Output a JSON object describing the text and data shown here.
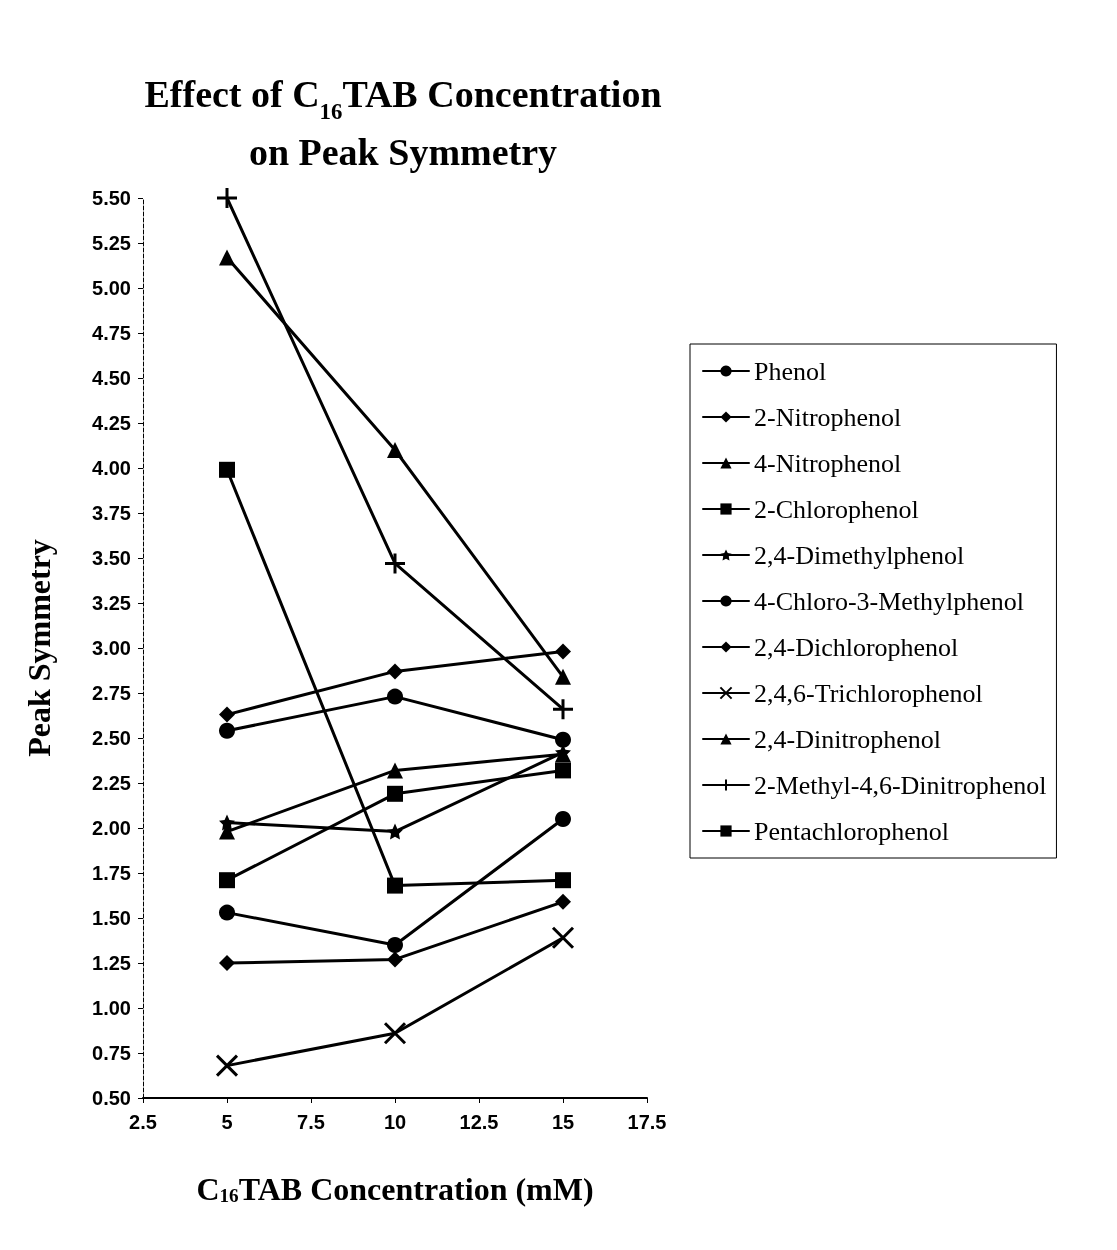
{
  "chart_data": {
    "type": "line",
    "title": "Effect of C$_{16}$TAB Concentration\non Peak Symmetry",
    "xlabel": "C$_{16}$TAB Concentration (mM)",
    "ylabel": "Peak Symmetry",
    "x": [
      5,
      10,
      15
    ],
    "xlim": [
      2.5,
      17.5
    ],
    "xticks": [
      2.5,
      5,
      7.5,
      10,
      12.5,
      15,
      17.5
    ],
    "ylim": [
      0.5,
      5.5
    ],
    "yticks": [
      {
        "value": 0.5,
        "label": "0.50"
      },
      {
        "value": 0.75,
        "label": "0.75"
      },
      {
        "value": 1,
        "label": "1.00"
      },
      {
        "value": 1.25,
        "label": "1.25"
      },
      {
        "value": 1.5,
        "label": "1.50"
      },
      {
        "value": 1.75,
        "label": "1.75"
      },
      {
        "value": 2,
        "label": "2.00"
      },
      {
        "value": 2.25,
        "label": "2.25"
      },
      {
        "value": 2.5,
        "label": "2.50"
      },
      {
        "value": 2.75,
        "label": "2.75"
      },
      {
        "value": 3,
        "label": "3.00"
      },
      {
        "value": 3.25,
        "label": "3.25"
      },
      {
        "value": 3.5,
        "label": "3.50"
      },
      {
        "value": 3.75,
        "label": "3.75"
      },
      {
        "value": 4,
        "label": "4.00"
      },
      {
        "value": 4.25,
        "label": "4.25"
      },
      {
        "value": 4.5,
        "label": "4.50"
      },
      {
        "value": 4.75,
        "label": "4.75"
      },
      {
        "value": 5,
        "label": "5.00"
      },
      {
        "value": 5.25,
        "label": "5.25"
      },
      {
        "value": 5.5,
        "label": "5.50"
      }
    ],
    "grid": false,
    "legend": "right",
    "line_style": "solid",
    "series": [
      {
        "name": "Phenol",
        "color": "#000000",
        "marker": "circle",
        "values": [
          1.53,
          1.35,
          2.05
        ]
      },
      {
        "name": "2-Nitrophenol",
        "color": "#000000",
        "marker": "diamond",
        "values": [
          1.25,
          1.27,
          1.59
        ]
      },
      {
        "name": "4-Nitrophenol",
        "color": "#000000",
        "marker": "triangle",
        "values": [
          1.98,
          2.32,
          2.41
        ]
      },
      {
        "name": "2-Chlorophenol",
        "color": "#000000",
        "marker": "square",
        "values": [
          1.71,
          2.19,
          2.32
        ]
      },
      {
        "name": "2,4-Dimethylphenol",
        "color": "#000000",
        "marker": "star",
        "values": [
          2.03,
          1.98,
          2.42
        ]
      },
      {
        "name": "4-Chloro-3-Methylphenol",
        "color": "#000000",
        "marker": "circle",
        "values": [
          2.54,
          2.73,
          2.49
        ]
      },
      {
        "name": "2,4-Dichlorophenol",
        "color": "#000000",
        "marker": "diamond",
        "values": [
          2.63,
          2.87,
          2.98
        ]
      },
      {
        "name": "2,4,6-Trichlorophenol",
        "color": "#000000",
        "marker": "x",
        "values": [
          0.68,
          0.86,
          1.39
        ]
      },
      {
        "name": "2,4-Dinitrophenol",
        "color": "#000000",
        "marker": "triangle",
        "values": [
          5.17,
          4.1,
          2.84
        ]
      },
      {
        "name": "2-Methyl-4,6-Dinitrophenol",
        "color": "#000000",
        "marker": "cross",
        "values": [
          5.5,
          3.47,
          2.66
        ]
      },
      {
        "name": "Pentachlorophenol",
        "color": "#000000",
        "marker": "square",
        "values": [
          3.99,
          1.68,
          1.71
        ]
      }
    ]
  }
}
